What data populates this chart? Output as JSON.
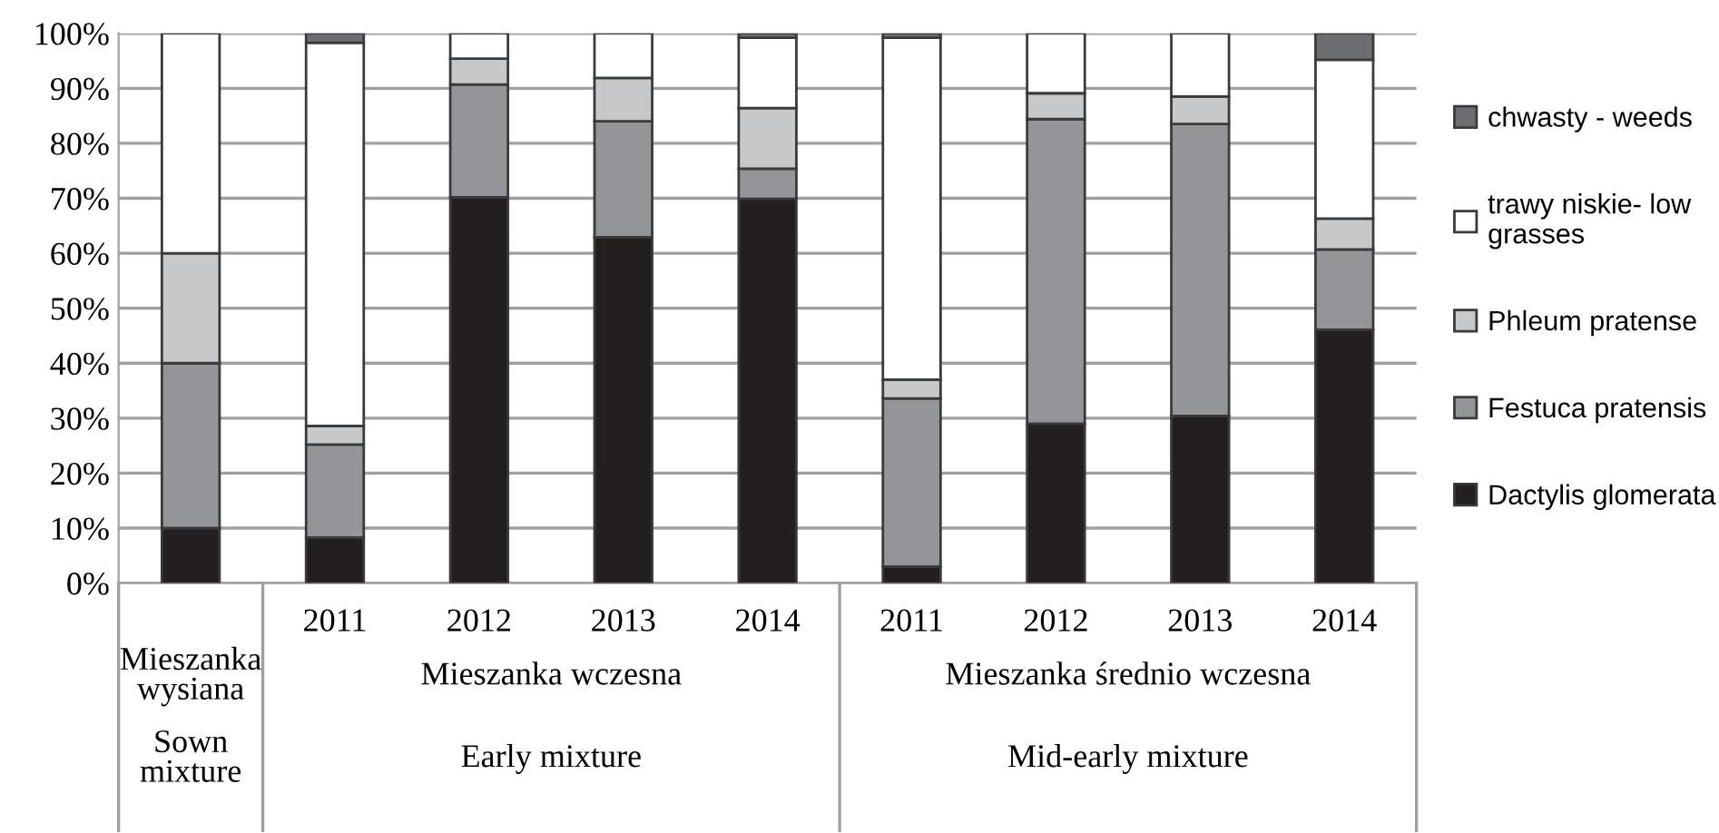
{
  "chart_data": {
    "type": "bar",
    "stacked": true,
    "categories": [
      null,
      "2011",
      "2012",
      "2013",
      "2014",
      "2011",
      "2012",
      "2013",
      "2014"
    ],
    "series": [
      {
        "name": "Dactylis glomerata",
        "color": "#231f20",
        "values": [
          10,
          8.3,
          70.2,
          62.9,
          69.9,
          3.0,
          29.0,
          30.4,
          46.1
        ]
      },
      {
        "name": "Festuca pratensis",
        "color": "#939598",
        "values": [
          30,
          16.9,
          20.5,
          21.1,
          5.5,
          30.6,
          55.4,
          53.1,
          14.6
        ]
      },
      {
        "name": "Phleum pratense",
        "color": "#c7c8ca",
        "values": [
          20,
          3.4,
          4.7,
          7.9,
          11.0,
          3.4,
          4.7,
          5.0,
          5.6
        ]
      },
      {
        "name": "trawy niskie- low\ngrasses",
        "color": "#ffffff",
        "values": [
          40,
          69.7,
          4.6,
          8.1,
          12.8,
          62.2,
          10.9,
          11.5,
          28.9
        ]
      },
      {
        "name": "chwasty - weeds",
        "color": "#6d6e71",
        "values": [
          0,
          1.7,
          0,
          0,
          0.8,
          0.8,
          0,
          0,
          4.8
        ]
      }
    ],
    "ylim": [
      0,
      100
    ],
    "yticks": [
      {
        "value": 0,
        "label": "0%"
      },
      {
        "value": 10,
        "label": "10%"
      },
      {
        "value": 20,
        "label": "20%"
      },
      {
        "value": 30,
        "label": "30%"
      },
      {
        "value": 40,
        "label": "40%"
      },
      {
        "value": 50,
        "label": "50%"
      },
      {
        "value": 60,
        "label": "60%"
      },
      {
        "value": 70,
        "label": "70%"
      },
      {
        "value": 80,
        "label": "80%"
      },
      {
        "value": 90,
        "label": "90%"
      },
      {
        "value": 100,
        "label": "100%"
      }
    ],
    "grid": "y",
    "legend": "right",
    "annotations": [
      "Mieszanka\nwysiana",
      "Mieszanka wczesna",
      "Mieszanka średnio wczesna",
      "Sown\nmixture",
      "Early mixture",
      "Mid-early mixture"
    ]
  }
}
